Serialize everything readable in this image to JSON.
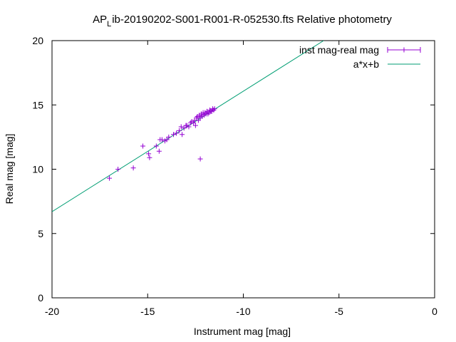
{
  "chart_data": {
    "type": "scatter",
    "title_main": "AP",
    "title_sub": "L",
    "title_rest": "ib-20190202-S001-R001-R-052530.fts Relative photometry",
    "xlabel": "Instrument mag [mag]",
    "ylabel": "Real mag [mag]",
    "xlim": [
      -20,
      0
    ],
    "ylim": [
      0,
      20
    ],
    "xticks": [
      -20,
      -15,
      -10,
      -5,
      0
    ],
    "yticks": [
      0,
      5,
      10,
      15,
      20
    ],
    "grid": false,
    "legend_position": "top-right",
    "series": [
      {
        "name": "inst mag-real mag",
        "kind": "points-with-error-bars",
        "color": "#9400d3",
        "x": [
          -17.0,
          -16.55,
          -15.75,
          -15.25,
          -14.95,
          -14.9,
          -14.55,
          -14.4,
          -14.35,
          -14.25,
          -14.1,
          -14.0,
          -13.9,
          -13.65,
          -13.5,
          -13.35,
          -13.25,
          -13.2,
          -13.1,
          -13.0,
          -12.95,
          -12.85,
          -12.75,
          -12.7,
          -12.6,
          -12.55,
          -12.5,
          -12.45,
          -12.4,
          -12.35,
          -12.3,
          -12.25,
          -12.2,
          -12.15,
          -12.1,
          -12.05,
          -12.0,
          -11.95,
          -11.9,
          -11.85,
          -11.8,
          -11.75,
          -11.7,
          -11.65,
          -11.6,
          -11.55,
          -11.5,
          -12.25
        ],
        "y": [
          9.3,
          10.0,
          10.1,
          11.8,
          11.2,
          10.9,
          11.8,
          11.4,
          12.3,
          12.3,
          12.2,
          12.3,
          12.5,
          12.7,
          12.8,
          13.0,
          13.3,
          12.7,
          13.2,
          13.4,
          13.4,
          13.3,
          13.6,
          13.7,
          13.6,
          13.8,
          13.4,
          14.0,
          14.1,
          13.8,
          14.2,
          14.0,
          14.3,
          14.1,
          14.4,
          14.2,
          14.4,
          14.3,
          14.5,
          14.3,
          14.4,
          14.6,
          14.5,
          14.5,
          14.7,
          14.6,
          14.7,
          10.8
        ]
      },
      {
        "name": "a*x+b",
        "kind": "fit-line",
        "color": "#009e73",
        "x": [
          -20,
          -5.8
        ],
        "y": [
          6.7,
          20.0
        ]
      }
    ]
  }
}
